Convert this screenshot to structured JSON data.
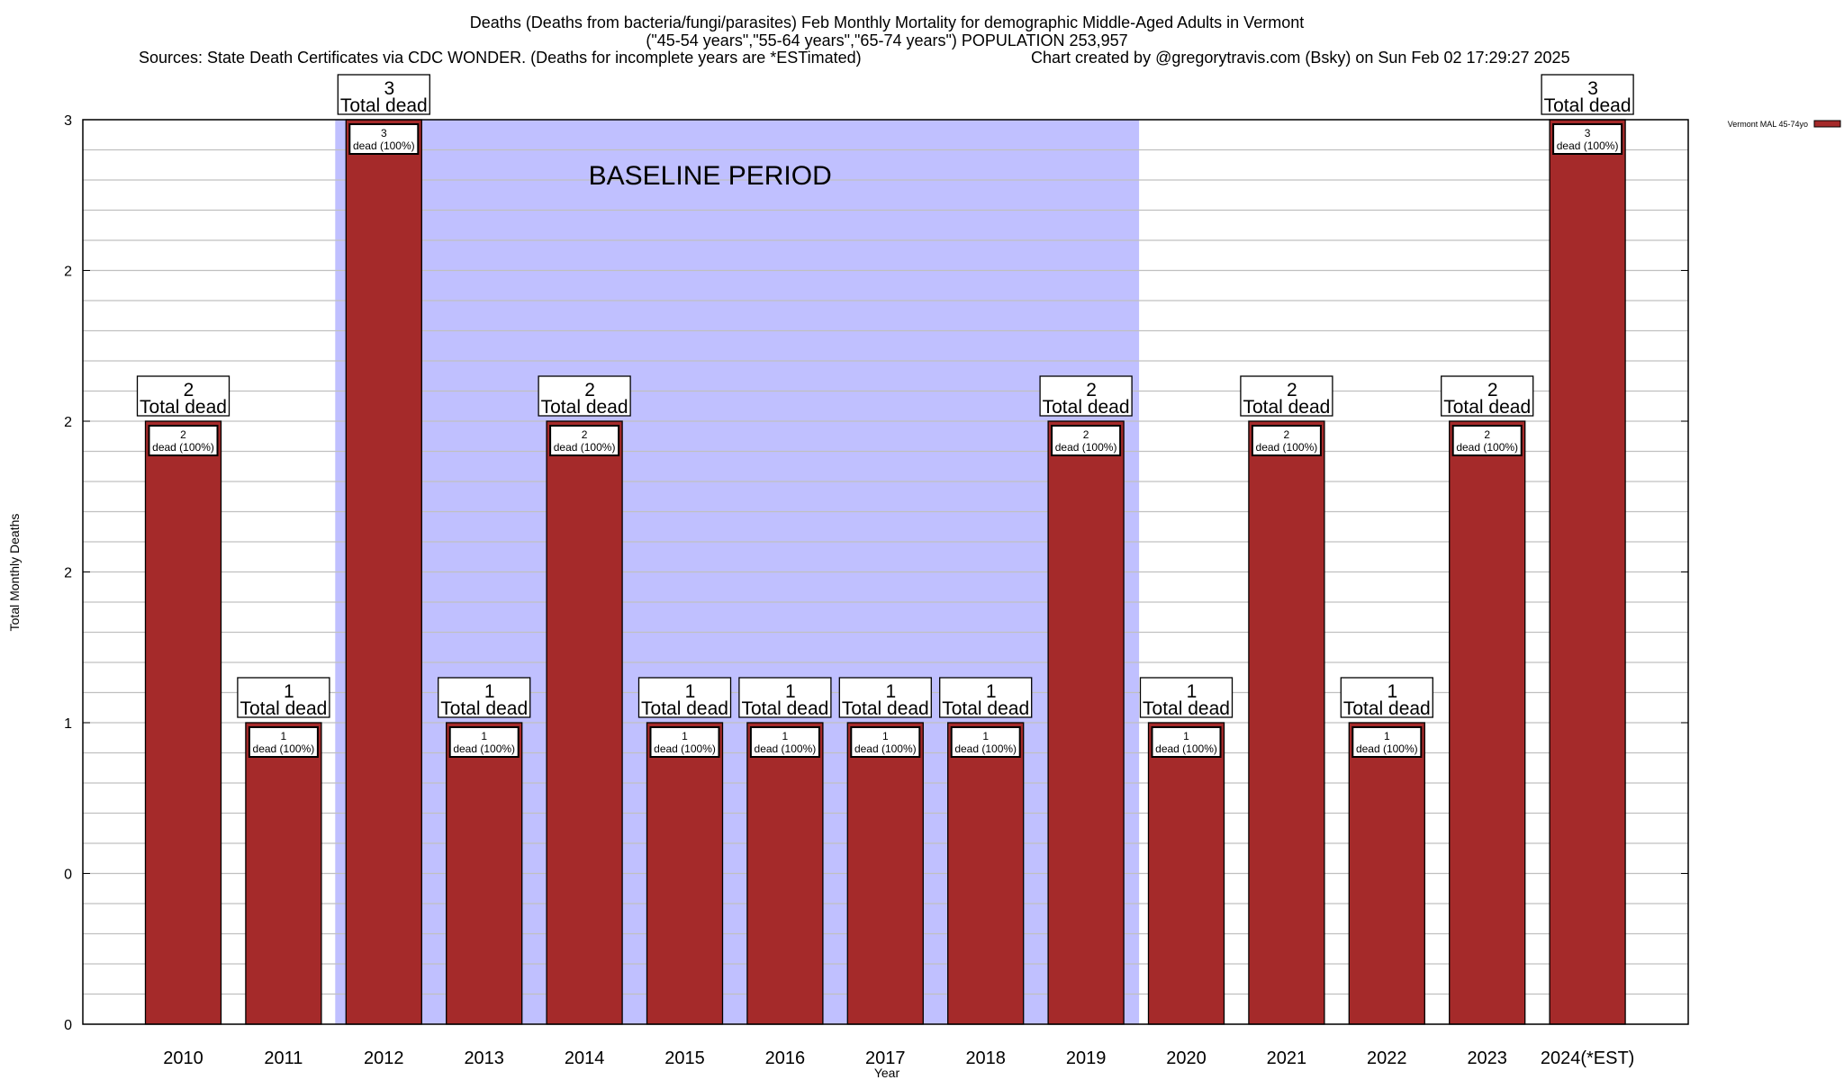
{
  "chart_data": {
    "type": "bar",
    "title_lines": [
      "Deaths (Deaths from bacteria/fungi/parasites) Feb Monthly Mortality for demographic Middle-Aged Adults in Vermont",
      "(\"45-54 years\",\"55-64 years\",\"65-74 years\") POPULATION 253,957"
    ],
    "sources": "Sources: State Death Certificates via CDC WONDER. (Deaths for incomplete years are *ESTimated)",
    "credit": "Chart created by @gregorytravis.com (Bsky) on Sun Feb 02 17:29:27 2025",
    "xlabel": "Year",
    "ylabel": "Total Monthly Deaths",
    "ylim": [
      0,
      3
    ],
    "yticks": [
      0,
      0.5,
      1,
      1.5,
      2,
      2.5,
      3
    ],
    "ytick_labels": [
      "0",
      "0",
      "1",
      "2",
      "2",
      "2",
      "3"
    ],
    "minor_grid_step": 0.1,
    "grid": true,
    "categories": [
      "2010",
      "2011",
      "2012",
      "2013",
      "2014",
      "2015",
      "2016",
      "2017",
      "2018",
      "2019",
      "2020",
      "2021",
      "2022",
      "2023",
      "2024(*EST)"
    ],
    "series": [
      {
        "name": "Vermont MAL 45-74yo",
        "color": "#a52a2a",
        "values": [
          2,
          1,
          3,
          1,
          2,
          1,
          1,
          1,
          1,
          2,
          1,
          2,
          1,
          2,
          3
        ]
      }
    ],
    "bar_label_suffix": "dead (100%)",
    "total_label_suffix": "Total dead",
    "baseline": {
      "label": "BASELINE PERIOD",
      "from": "2012",
      "to": "2019",
      "color": "#c0c0ff"
    },
    "legend_position": "top-right"
  }
}
